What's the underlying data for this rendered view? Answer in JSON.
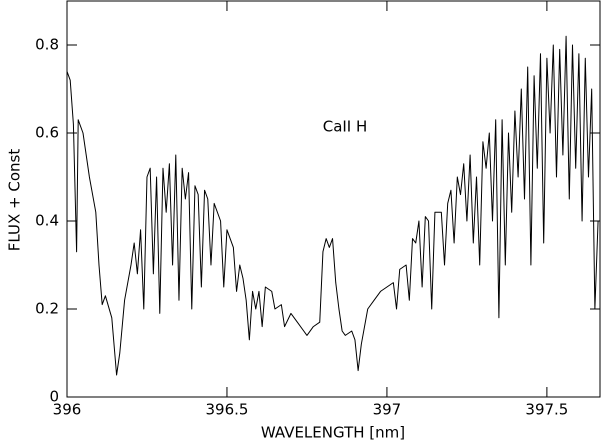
{
  "chart_data": {
    "type": "line",
    "x_label": "WAVELENGTH [nm]",
    "y_label": "FLUX + Const",
    "annotation": "CaII H",
    "xlim": [
      396,
      397.666
    ],
    "ylim": [
      0,
      0.9
    ],
    "xticks": [
      396,
      396.5,
      397,
      397.5
    ],
    "yticks": [
      0,
      0.2,
      0.4,
      0.6,
      0.8
    ],
    "color": "#000000",
    "grid": false,
    "x": [
      396.0,
      396.01,
      396.02,
      396.03,
      396.035,
      396.05,
      396.07,
      396.09,
      396.1,
      396.11,
      396.12,
      396.14,
      396.155,
      396.165,
      396.18,
      396.2,
      396.21,
      396.22,
      396.23,
      396.24,
      396.25,
      396.26,
      396.27,
      396.28,
      396.29,
      396.3,
      396.31,
      396.32,
      396.33,
      396.34,
      396.35,
      396.36,
      396.37,
      396.38,
      396.39,
      396.4,
      396.41,
      396.42,
      396.43,
      396.44,
      396.45,
      396.46,
      396.48,
      396.49,
      396.5,
      396.52,
      396.53,
      396.54,
      396.55,
      396.56,
      396.57,
      396.58,
      396.59,
      396.6,
      396.61,
      396.62,
      396.64,
      396.65,
      396.67,
      396.68,
      396.7,
      396.72,
      396.74,
      396.75,
      396.77,
      396.79,
      396.8,
      396.81,
      396.82,
      396.83,
      396.84,
      396.85,
      396.86,
      396.87,
      396.89,
      396.9,
      396.91,
      396.92,
      396.94,
      396.96,
      396.98,
      397.0,
      397.02,
      397.03,
      397.04,
      397.06,
      397.07,
      397.08,
      397.09,
      397.1,
      397.11,
      397.12,
      397.13,
      397.14,
      397.15,
      397.17,
      397.18,
      397.19,
      397.2,
      397.21,
      397.22,
      397.23,
      397.24,
      397.25,
      397.26,
      397.27,
      397.28,
      397.29,
      397.3,
      397.31,
      397.32,
      397.33,
      397.34,
      397.35,
      397.36,
      397.37,
      397.38,
      397.39,
      397.4,
      397.41,
      397.42,
      397.43,
      397.44,
      397.45,
      397.46,
      397.47,
      397.48,
      397.49,
      397.5,
      397.51,
      397.52,
      397.53,
      397.54,
      397.55,
      397.56,
      397.57,
      397.58,
      397.59,
      397.6,
      397.61,
      397.62,
      397.63,
      397.64,
      397.65,
      397.66
    ],
    "values": [
      0.74,
      0.72,
      0.62,
      0.33,
      0.63,
      0.6,
      0.5,
      0.42,
      0.3,
      0.21,
      0.23,
      0.18,
      0.05,
      0.1,
      0.22,
      0.3,
      0.35,
      0.28,
      0.38,
      0.2,
      0.5,
      0.52,
      0.28,
      0.5,
      0.19,
      0.52,
      0.42,
      0.53,
      0.3,
      0.55,
      0.22,
      0.52,
      0.45,
      0.51,
      0.2,
      0.48,
      0.46,
      0.25,
      0.47,
      0.45,
      0.3,
      0.44,
      0.4,
      0.25,
      0.38,
      0.34,
      0.24,
      0.3,
      0.27,
      0.22,
      0.13,
      0.24,
      0.2,
      0.24,
      0.16,
      0.25,
      0.24,
      0.2,
      0.21,
      0.16,
      0.19,
      0.17,
      0.15,
      0.14,
      0.16,
      0.17,
      0.33,
      0.36,
      0.34,
      0.36,
      0.26,
      0.2,
      0.15,
      0.14,
      0.15,
      0.13,
      0.06,
      0.12,
      0.2,
      0.22,
      0.24,
      0.25,
      0.26,
      0.2,
      0.29,
      0.3,
      0.22,
      0.36,
      0.35,
      0.4,
      0.25,
      0.41,
      0.4,
      0.2,
      0.42,
      0.42,
      0.3,
      0.44,
      0.47,
      0.35,
      0.5,
      0.46,
      0.53,
      0.4,
      0.55,
      0.35,
      0.5,
      0.3,
      0.58,
      0.52,
      0.6,
      0.4,
      0.63,
      0.18,
      0.63,
      0.3,
      0.6,
      0.42,
      0.65,
      0.5,
      0.7,
      0.45,
      0.75,
      0.3,
      0.73,
      0.52,
      0.78,
      0.35,
      0.77,
      0.6,
      0.8,
      0.5,
      0.79,
      0.55,
      0.82,
      0.45,
      0.8,
      0.52,
      0.78,
      0.4,
      0.77,
      0.5,
      0.7,
      0.2,
      0.4
    ]
  }
}
